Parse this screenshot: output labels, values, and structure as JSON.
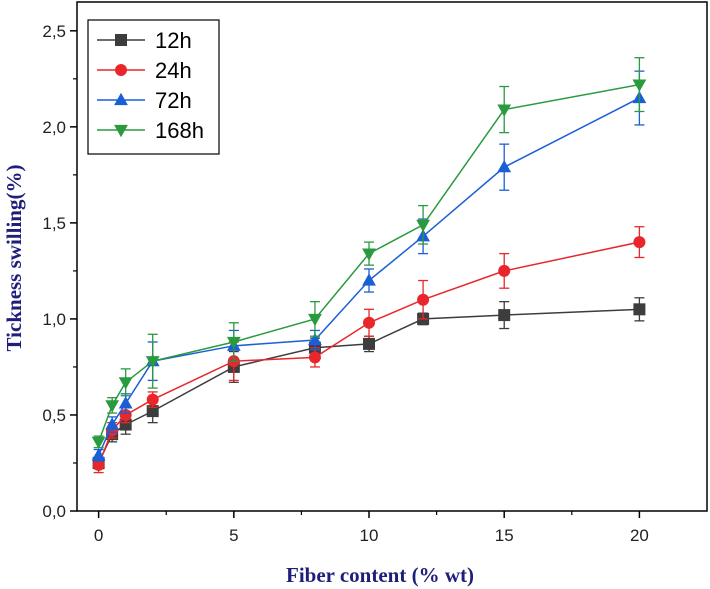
{
  "chart_data": {
    "type": "line",
    "title": "",
    "xlabel": "Fiber content (% wt)",
    "ylabel": "Tickness swilling(%)",
    "xlim": [
      -0.8,
      22.5
    ],
    "ylim": [
      0.0,
      2.65
    ],
    "xticks": [
      0,
      5,
      10,
      15,
      20
    ],
    "yticks": [
      0.0,
      0.5,
      1.0,
      1.5,
      2.0,
      2.5
    ],
    "xtick_labels": [
      "0",
      "5",
      "10",
      "15",
      "20"
    ],
    "ytick_labels": [
      "0,0",
      "0,5",
      "1,0",
      "1,5",
      "2,0",
      "2,5"
    ],
    "x": [
      0,
      0.5,
      1,
      2,
      5,
      8,
      10,
      12,
      15,
      20
    ],
    "legend_position": "top-left",
    "grid": false,
    "series": [
      {
        "name": "12h",
        "color": "#3d3d3d",
        "marker": "square",
        "values": [
          0.25,
          0.4,
          0.45,
          0.52,
          0.75,
          0.85,
          0.87,
          1.0,
          1.02,
          1.05
        ],
        "errors": [
          0.03,
          0.04,
          0.05,
          0.06,
          0.08,
          0.05,
          0.04,
          0.03,
          0.07,
          0.06
        ]
      },
      {
        "name": "24h",
        "color": "#e8262b",
        "marker": "circle",
        "values": [
          0.24,
          0.42,
          0.5,
          0.58,
          0.78,
          0.8,
          0.98,
          1.1,
          1.25,
          1.4
        ],
        "errors": [
          0.04,
          0.04,
          0.04,
          0.04,
          0.1,
          0.05,
          0.07,
          0.1,
          0.09,
          0.08
        ]
      },
      {
        "name": "72h",
        "color": "#1a5fd6",
        "marker": "triangle-up",
        "values": [
          0.29,
          0.45,
          0.56,
          0.78,
          0.86,
          0.89,
          1.2,
          1.43,
          1.79,
          2.15
        ],
        "errors": [
          0.03,
          0.04,
          0.05,
          0.1,
          0.08,
          0.05,
          0.06,
          0.09,
          0.12,
          0.14
        ]
      },
      {
        "name": "168h",
        "color": "#2a9a3e",
        "marker": "triangle-down",
        "values": [
          0.36,
          0.55,
          0.67,
          0.78,
          0.88,
          1.0,
          1.34,
          1.49,
          2.09,
          2.22
        ],
        "errors": [
          0.03,
          0.04,
          0.07,
          0.14,
          0.1,
          0.09,
          0.06,
          0.1,
          0.12,
          0.14
        ]
      }
    ]
  }
}
